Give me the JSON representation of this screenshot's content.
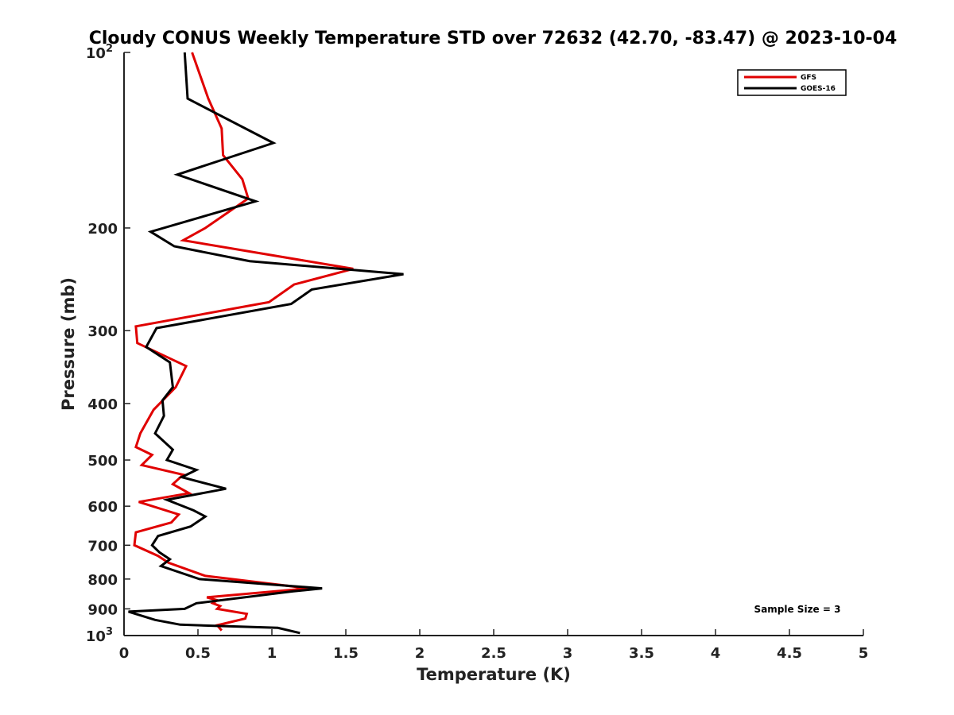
{
  "chart_data": {
    "type": "line",
    "title": "Cloudy CONUS Weekly Temperature STD over 72632 (42.70, -83.47) @ 2023-10-04",
    "xlabel": "Temperature (K)",
    "ylabel": "Pressure (mb)",
    "xlim": [
      0,
      5
    ],
    "ylim": [
      100,
      1000
    ],
    "y_scale": "log",
    "y_reversed": true,
    "grid": false,
    "legend_position": "top-right",
    "x_ticks": [
      "0",
      "0.5",
      "1",
      "1.5",
      "2",
      "2.5",
      "3",
      "3.5",
      "4",
      "4.5",
      "5"
    ],
    "y_ticks": [
      {
        "value": 100,
        "label": "10",
        "sup": "2"
      },
      {
        "value": 200,
        "label": "200",
        "sup": ""
      },
      {
        "value": 300,
        "label": "300",
        "sup": ""
      },
      {
        "value": 400,
        "label": "400",
        "sup": ""
      },
      {
        "value": 500,
        "label": "500",
        "sup": ""
      },
      {
        "value": 600,
        "label": "600",
        "sup": ""
      },
      {
        "value": 700,
        "label": "700",
        "sup": ""
      },
      {
        "value": 800,
        "label": "800",
        "sup": ""
      },
      {
        "value": 900,
        "label": "900",
        "sup": ""
      },
      {
        "value": 1000,
        "label": "10",
        "sup": "3"
      }
    ],
    "annotation": "Sample Size = 3",
    "series": [
      {
        "name": "GFS",
        "color": "#e00000",
        "points": [
          [
            0.46,
            100
          ],
          [
            0.57,
            120
          ],
          [
            0.66,
            135
          ],
          [
            0.67,
            150
          ],
          [
            0.8,
            165
          ],
          [
            0.84,
            178
          ],
          [
            0.55,
            200
          ],
          [
            0.4,
            210
          ],
          [
            1.55,
            235
          ],
          [
            1.15,
            250
          ],
          [
            0.98,
            268
          ],
          [
            0.08,
            295
          ],
          [
            0.09,
            315
          ],
          [
            0.42,
            345
          ],
          [
            0.35,
            375
          ],
          [
            0.2,
            410
          ],
          [
            0.11,
            450
          ],
          [
            0.08,
            475
          ],
          [
            0.19,
            490
          ],
          [
            0.12,
            510
          ],
          [
            0.4,
            530
          ],
          [
            0.33,
            550
          ],
          [
            0.44,
            570
          ],
          [
            0.1,
            590
          ],
          [
            0.37,
            620
          ],
          [
            0.32,
            640
          ],
          [
            0.08,
            665
          ],
          [
            0.07,
            700
          ],
          [
            0.23,
            730
          ],
          [
            0.3,
            750
          ],
          [
            0.55,
            790
          ],
          [
            1.25,
            830
          ],
          [
            0.56,
            860
          ],
          [
            0.63,
            870
          ],
          [
            0.6,
            880
          ],
          [
            0.65,
            890
          ],
          [
            0.63,
            900
          ],
          [
            0.83,
            918
          ],
          [
            0.82,
            935
          ],
          [
            0.63,
            960
          ],
          [
            0.66,
            980
          ]
        ]
      },
      {
        "name": "GOES-16",
        "color": "#000000",
        "points": [
          [
            0.41,
            100
          ],
          [
            0.43,
            120
          ],
          [
            1.01,
            143
          ],
          [
            0.36,
            162
          ],
          [
            0.89,
            180
          ],
          [
            0.18,
            203
          ],
          [
            0.34,
            215
          ],
          [
            0.85,
            228
          ],
          [
            1.89,
            240
          ],
          [
            1.27,
            255
          ],
          [
            1.13,
            270
          ],
          [
            0.22,
            297
          ],
          [
            0.15,
            320
          ],
          [
            0.31,
            340
          ],
          [
            0.33,
            375
          ],
          [
            0.26,
            395
          ],
          [
            0.27,
            420
          ],
          [
            0.21,
            450
          ],
          [
            0.33,
            480
          ],
          [
            0.29,
            500
          ],
          [
            0.49,
            520
          ],
          [
            0.39,
            535
          ],
          [
            0.69,
            560
          ],
          [
            0.29,
            585
          ],
          [
            0.47,
            610
          ],
          [
            0.55,
            625
          ],
          [
            0.45,
            650
          ],
          [
            0.23,
            675
          ],
          [
            0.19,
            700
          ],
          [
            0.24,
            720
          ],
          [
            0.31,
            740
          ],
          [
            0.25,
            760
          ],
          [
            0.51,
            800
          ],
          [
            1.34,
            830
          ],
          [
            1.14,
            840
          ],
          [
            0.49,
            880
          ],
          [
            0.41,
            900
          ],
          [
            0.03,
            910
          ],
          [
            0.21,
            940
          ],
          [
            0.38,
            958
          ],
          [
            1.04,
            970
          ],
          [
            1.19,
            990
          ]
        ]
      }
    ]
  }
}
